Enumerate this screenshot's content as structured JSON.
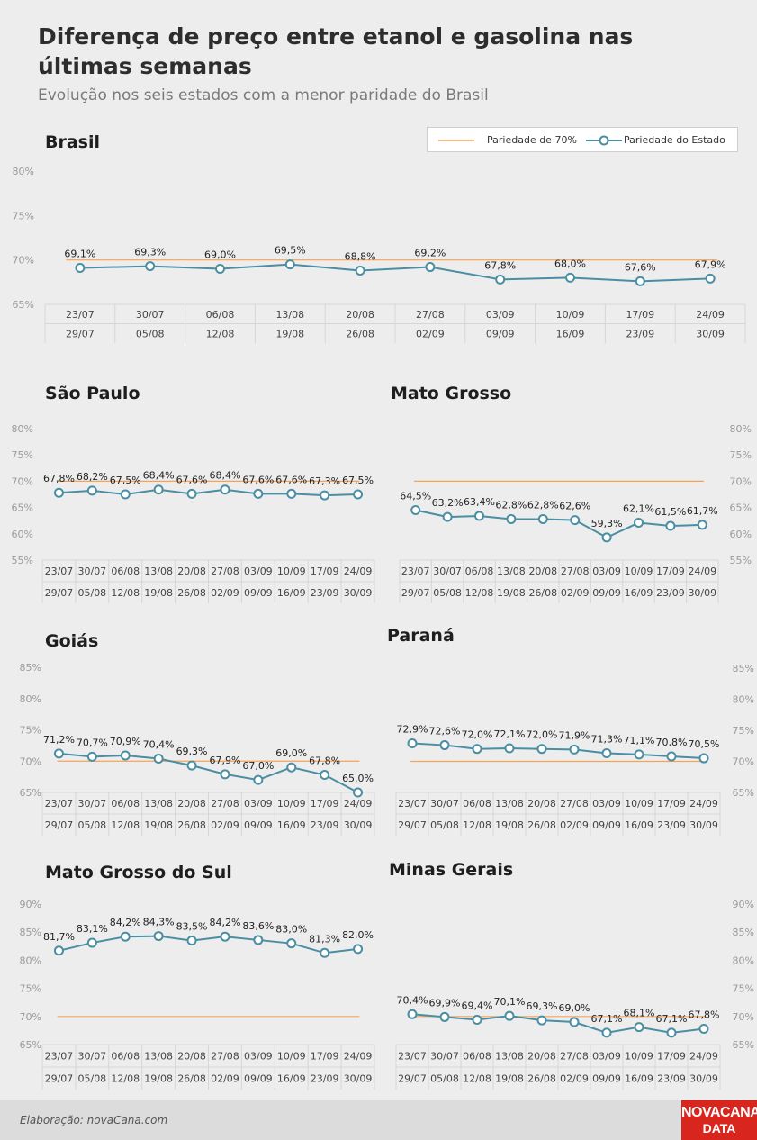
{
  "title": "Diferença de preço entre etanol e gasolina nas últimas semanas",
  "subtitle": "Evolução nos seis estados com a menor paridade do Brasil",
  "legend": {
    "parity_label": "Pariedade de 70%",
    "state_label": "Pariedade do Estado",
    "parity_color": "#f5a35a",
    "state_color": "#4a8ea4"
  },
  "footer": {
    "credit": "Elaboração: novaCana.com",
    "logo_line1": "NOVACANA",
    "logo_line2": "DATA"
  },
  "chart_data": [
    {
      "type": "line",
      "title": "Brasil",
      "categories": [
        [
          "23/07",
          "29/07"
        ],
        [
          "30/07",
          "05/08"
        ],
        [
          "06/08",
          "12/08"
        ],
        [
          "13/08",
          "19/08"
        ],
        [
          "20/08",
          "26/08"
        ],
        [
          "27/08",
          "02/09"
        ],
        [
          "03/09",
          "09/09"
        ],
        [
          "10/09",
          "16/09"
        ],
        [
          "17/09",
          "23/09"
        ],
        [
          "24/09",
          "30/09"
        ]
      ],
      "series": [
        {
          "name": "Pariedade do Estado",
          "values": [
            69.1,
            69.3,
            69.0,
            69.5,
            68.8,
            69.2,
            67.8,
            68.0,
            67.6,
            67.9
          ],
          "labels": [
            "69,1%",
            "69,3%",
            "69,0%",
            "69,5%",
            "68,8%",
            "69,2%",
            "67,8%",
            "68,0%",
            "67,6%",
            "67,9%"
          ]
        },
        {
          "name": "Pariedade de 70%",
          "value": 70
        }
      ],
      "ylim": [
        65,
        80
      ],
      "yticks": [
        65,
        70,
        75,
        80
      ],
      "ytick_labels": [
        "65%",
        "70%",
        "75%",
        "80%"
      ],
      "axis_side": "left"
    },
    {
      "type": "line",
      "title": "São Paulo",
      "categories": [
        [
          "23/07",
          "29/07"
        ],
        [
          "30/07",
          "05/08"
        ],
        [
          "06/08",
          "12/08"
        ],
        [
          "13/08",
          "19/08"
        ],
        [
          "20/08",
          "26/08"
        ],
        [
          "27/08",
          "02/09"
        ],
        [
          "03/09",
          "09/09"
        ],
        [
          "10/09",
          "16/09"
        ],
        [
          "17/09",
          "23/09"
        ],
        [
          "24/09",
          "30/09"
        ]
      ],
      "series": [
        {
          "name": "Pariedade do Estado",
          "values": [
            67.8,
            68.2,
            67.5,
            68.4,
            67.6,
            68.4,
            67.6,
            67.6,
            67.3,
            67.5
          ],
          "labels": [
            "67,8%",
            "68,2%",
            "67,5%",
            "68,4%",
            "67,6%",
            "68,4%",
            "67,6%",
            "67,6%",
            "67,3%",
            "67,5%"
          ]
        },
        {
          "name": "Pariedade de 70%",
          "value": 70
        }
      ],
      "ylim": [
        55,
        80
      ],
      "yticks": [
        55,
        60,
        65,
        70,
        75,
        80
      ],
      "ytick_labels": [
        "55%",
        "60%",
        "65%",
        "70%",
        "75%",
        "80%"
      ],
      "axis_side": "left"
    },
    {
      "type": "line",
      "title": "Mato Grosso",
      "categories": [
        [
          "23/07",
          "29/07"
        ],
        [
          "30/07",
          "05/08"
        ],
        [
          "06/08",
          "12/08"
        ],
        [
          "13/08",
          "19/08"
        ],
        [
          "20/08",
          "26/08"
        ],
        [
          "27/08",
          "02/09"
        ],
        [
          "03/09",
          "09/09"
        ],
        [
          "10/09",
          "16/09"
        ],
        [
          "17/09",
          "23/09"
        ],
        [
          "24/09",
          "30/09"
        ]
      ],
      "series": [
        {
          "name": "Pariedade do Estado",
          "values": [
            64.5,
            63.2,
            63.4,
            62.8,
            62.8,
            62.6,
            59.3,
            62.1,
            61.5,
            61.7
          ],
          "labels": [
            "64,5%",
            "63,2%",
            "63,4%",
            "62,8%",
            "62,8%",
            "62,6%",
            "59,3%",
            "62,1%",
            "61,5%",
            "61,7%"
          ]
        },
        {
          "name": "Pariedade de 70%",
          "value": 70
        }
      ],
      "ylim": [
        55,
        80
      ],
      "yticks": [
        55,
        60,
        65,
        70,
        75,
        80
      ],
      "ytick_labels": [
        "55%",
        "60%",
        "65%",
        "70%",
        "75%",
        "80%"
      ],
      "axis_side": "right"
    },
    {
      "type": "line",
      "title": "Goiás",
      "categories": [
        [
          "23/07",
          "29/07"
        ],
        [
          "30/07",
          "05/08"
        ],
        [
          "06/08",
          "12/08"
        ],
        [
          "13/08",
          "19/08"
        ],
        [
          "20/08",
          "26/08"
        ],
        [
          "27/08",
          "02/09"
        ],
        [
          "03/09",
          "09/09"
        ],
        [
          "10/09",
          "16/09"
        ],
        [
          "17/09",
          "23/09"
        ],
        [
          "24/09",
          "30/09"
        ]
      ],
      "series": [
        {
          "name": "Pariedade do Estado",
          "values": [
            71.2,
            70.7,
            70.9,
            70.4,
            69.3,
            67.9,
            67.0,
            69.0,
            67.8,
            65.0
          ],
          "labels": [
            "71,2%",
            "70,7%",
            "70,9%",
            "70,4%",
            "69,3%",
            "67,9%",
            "67,0%",
            "69,0%",
            "67,8%",
            "65,0%"
          ]
        },
        {
          "name": "Pariedade de 70%",
          "value": 70
        }
      ],
      "ylim": [
        65,
        85
      ],
      "yticks": [
        65,
        70,
        75,
        80,
        85
      ],
      "ytick_labels": [
        "65%",
        "70%",
        "75%",
        "80%",
        "85%"
      ],
      "axis_side": "left"
    },
    {
      "type": "line",
      "title": "Paraná",
      "categories": [
        [
          "23/07",
          "29/07"
        ],
        [
          "30/07",
          "05/08"
        ],
        [
          "06/08",
          "12/08"
        ],
        [
          "13/08",
          "19/08"
        ],
        [
          "20/08",
          "26/08"
        ],
        [
          "27/08",
          "02/09"
        ],
        [
          "03/09",
          "09/09"
        ],
        [
          "10/09",
          "16/09"
        ],
        [
          "17/09",
          "23/09"
        ],
        [
          "24/09",
          "30/09"
        ]
      ],
      "series": [
        {
          "name": "Pariedade do Estado",
          "values": [
            72.9,
            72.6,
            72.0,
            72.1,
            72.0,
            71.9,
            71.3,
            71.1,
            70.8,
            70.5
          ],
          "labels": [
            "72,9%",
            "72,6%",
            "72,0%",
            "72,1%",
            "72,0%",
            "71,9%",
            "71,3%",
            "71,1%",
            "70,8%",
            "70,5%"
          ]
        },
        {
          "name": "Pariedade de 70%",
          "value": 70
        }
      ],
      "ylim": [
        65,
        85
      ],
      "yticks": [
        65,
        70,
        75,
        80,
        85
      ],
      "ytick_labels": [
        "65%",
        "70%",
        "75%",
        "80%",
        "85%"
      ],
      "axis_side": "right"
    },
    {
      "type": "line",
      "title": "Mato Grosso do Sul",
      "categories": [
        [
          "23/07",
          "29/07"
        ],
        [
          "30/07",
          "05/08"
        ],
        [
          "06/08",
          "12/08"
        ],
        [
          "13/08",
          "19/08"
        ],
        [
          "20/08",
          "26/08"
        ],
        [
          "27/08",
          "02/09"
        ],
        [
          "03/09",
          "09/09"
        ],
        [
          "10/09",
          "16/09"
        ],
        [
          "17/09",
          "23/09"
        ],
        [
          "24/09",
          "30/09"
        ]
      ],
      "series": [
        {
          "name": "Pariedade do Estado",
          "values": [
            81.7,
            83.1,
            84.2,
            84.3,
            83.5,
            84.2,
            83.6,
            83.0,
            81.3,
            82.0
          ],
          "labels": [
            "81,7%",
            "83,1%",
            "84,2%",
            "84,3%",
            "83,5%",
            "84,2%",
            "83,6%",
            "83,0%",
            "81,3%",
            "82,0%"
          ]
        },
        {
          "name": "Pariedade de 70%",
          "value": 70
        }
      ],
      "ylim": [
        65,
        90
      ],
      "yticks": [
        65,
        70,
        75,
        80,
        85,
        90
      ],
      "ytick_labels": [
        "65%",
        "70%",
        "75%",
        "80%",
        "85%",
        "90%"
      ],
      "axis_side": "left"
    },
    {
      "type": "line",
      "title": "Minas Gerais",
      "categories": [
        [
          "23/07",
          "29/07"
        ],
        [
          "30/07",
          "05/08"
        ],
        [
          "06/08",
          "12/08"
        ],
        [
          "13/08",
          "19/08"
        ],
        [
          "20/08",
          "26/08"
        ],
        [
          "27/08",
          "02/09"
        ],
        [
          "03/09",
          "09/09"
        ],
        [
          "10/09",
          "16/09"
        ],
        [
          "17/09",
          "23/09"
        ],
        [
          "24/09",
          "30/09"
        ]
      ],
      "series": [
        {
          "name": "Pariedade do Estado",
          "values": [
            70.4,
            69.9,
            69.4,
            70.1,
            69.3,
            69.0,
            67.1,
            68.1,
            67.1,
            67.8
          ],
          "labels": [
            "70,4%",
            "69,9%",
            "69,4%",
            "70,1%",
            "69,3%",
            "69,0%",
            "67,1%",
            "68,1%",
            "67,1%",
            "67,8%"
          ]
        },
        {
          "name": "Pariedade de 70%",
          "value": 70
        }
      ],
      "ylim": [
        65,
        90
      ],
      "yticks": [
        65,
        70,
        75,
        80,
        85,
        90
      ],
      "ytick_labels": [
        "65%",
        "70%",
        "75%",
        "80%",
        "85%",
        "90%"
      ],
      "axis_side": "right"
    }
  ]
}
